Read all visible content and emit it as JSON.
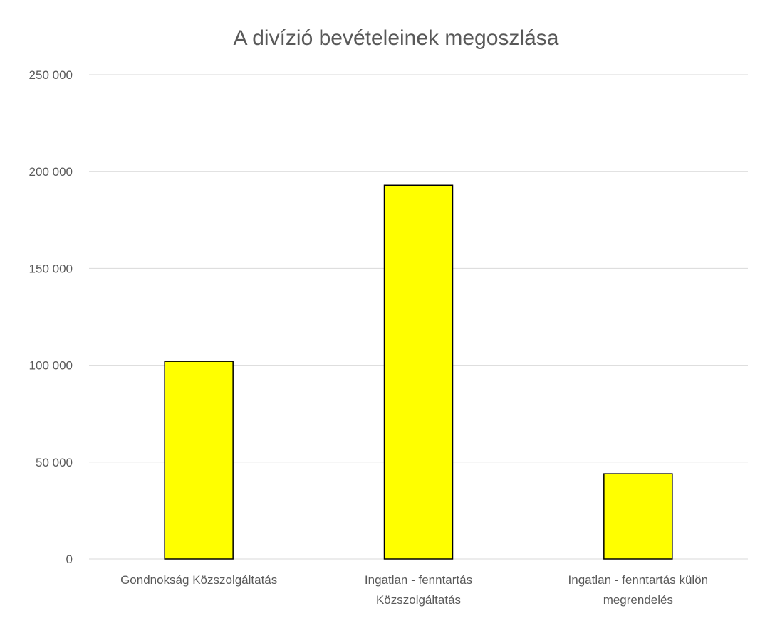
{
  "chart_data": {
    "type": "bar",
    "title": "A divízió bevételeinek megoszlása",
    "categories": [
      [
        "Gondnokság Közszolgáltatás"
      ],
      [
        "Ingatlan - fenntartás",
        "Közszolgáltatás"
      ],
      [
        "Ingatlan - fenntartás külön",
        "megrendelés"
      ]
    ],
    "values": [
      102000,
      193000,
      44000
    ],
    "ylim": [
      0,
      250000
    ],
    "yticks": [
      0,
      50000,
      100000,
      150000,
      200000,
      250000
    ],
    "ytick_labels": [
      "0",
      "50 000",
      "100 000",
      "150 000",
      "200 000",
      "250 000"
    ],
    "grid": true,
    "bar_color": "#ffff00",
    "bar_edge_color": "#000000",
    "gridline_color": "#d9d9d9",
    "text_color": "#595959"
  }
}
